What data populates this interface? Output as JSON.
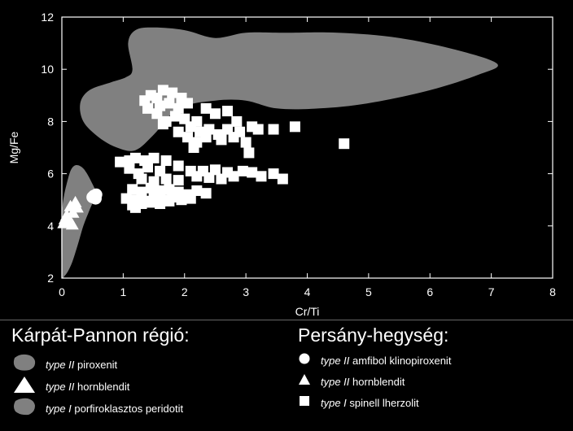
{
  "chart_data": {
    "type": "scatter",
    "xlabel": "Cr/Ti",
    "ylabel": "Mg/Fe",
    "xlim": [
      0,
      8
    ],
    "ylim": [
      2,
      12
    ],
    "xticks": [
      "0",
      "1",
      "2",
      "3",
      "4",
      "5",
      "6",
      "7",
      "8"
    ],
    "yticks": [
      "2",
      "4",
      "6",
      "8",
      "10",
      "12"
    ],
    "grid": false,
    "regions": [
      {
        "name": "type II piroxenit",
        "color": "#808080",
        "polygon": [
          [
            0.0,
            2.2
          ],
          [
            0.0,
            4.5
          ],
          [
            0.1,
            5.8
          ],
          [
            0.2,
            6.3
          ],
          [
            0.35,
            6.2
          ],
          [
            0.5,
            5.6
          ],
          [
            0.55,
            5.2
          ],
          [
            0.45,
            4.6
          ],
          [
            0.35,
            4.0
          ],
          [
            0.25,
            3.2
          ],
          [
            0.15,
            2.5
          ],
          [
            0.05,
            2.1
          ]
        ]
      },
      {
        "name": "type I porfiroklasztos peridotit",
        "color": "#808080",
        "polygon": [
          [
            0.35,
            8.0
          ],
          [
            0.3,
            8.7
          ],
          [
            0.45,
            9.2
          ],
          [
            0.8,
            9.5
          ],
          [
            1.05,
            9.7
          ],
          [
            1.15,
            10.0
          ],
          [
            1.08,
            11.0
          ],
          [
            1.2,
            11.5
          ],
          [
            1.5,
            11.6
          ],
          [
            2.0,
            11.5
          ],
          [
            2.5,
            11.2
          ],
          [
            3.0,
            11.4
          ],
          [
            3.6,
            11.4
          ],
          [
            4.5,
            11.4
          ],
          [
            5.5,
            11.2
          ],
          [
            6.5,
            10.7
          ],
          [
            7.1,
            10.2
          ],
          [
            6.8,
            9.8
          ],
          [
            6.0,
            9.2
          ],
          [
            5.0,
            8.7
          ],
          [
            4.2,
            8.5
          ],
          [
            3.5,
            8.5
          ],
          [
            3.0,
            8.8
          ],
          [
            2.5,
            8.8
          ],
          [
            1.9,
            8.5
          ],
          [
            1.5,
            7.5
          ],
          [
            1.2,
            6.9
          ],
          [
            0.9,
            7.0
          ],
          [
            0.6,
            7.4
          ]
        ]
      }
    ],
    "series": [
      {
        "name": "type II amfibol klinopiroxenit",
        "marker": "circle",
        "points": [
          [
            0.52,
            5.15
          ],
          [
            0.56,
            5.2
          ],
          [
            0.55,
            5.05
          ],
          [
            0.5,
            5.1
          ]
        ]
      },
      {
        "name": "type II hornblendit",
        "marker": "triangle",
        "points": [
          [
            0.03,
            4.1
          ],
          [
            0.1,
            4.15
          ],
          [
            0.17,
            4.05
          ],
          [
            0.08,
            4.4
          ],
          [
            0.18,
            4.5
          ],
          [
            0.14,
            4.75
          ],
          [
            0.25,
            4.7
          ],
          [
            0.22,
            4.9
          ],
          [
            0.05,
            4.25
          ]
        ]
      },
      {
        "name": "type I spinell lherzolit",
        "marker": "square",
        "points": [
          [
            1.35,
            8.8
          ],
          [
            1.45,
            9.0
          ],
          [
            1.55,
            8.9
          ],
          [
            1.65,
            9.2
          ],
          [
            1.8,
            9.1
          ],
          [
            1.95,
            8.9
          ],
          [
            2.05,
            8.7
          ],
          [
            1.4,
            8.5
          ],
          [
            1.6,
            8.6
          ],
          [
            1.75,
            8.7
          ],
          [
            1.9,
            8.5
          ],
          [
            1.55,
            8.3
          ],
          [
            1.7,
            8.0
          ],
          [
            1.85,
            8.2
          ],
          [
            2.0,
            8.1
          ],
          [
            2.2,
            8.0
          ],
          [
            2.35,
            8.5
          ],
          [
            2.5,
            8.3
          ],
          [
            2.7,
            8.4
          ],
          [
            2.85,
            8.0
          ],
          [
            1.65,
            7.9
          ],
          [
            2.1,
            7.8
          ],
          [
            2.25,
            7.6
          ],
          [
            2.4,
            7.7
          ],
          [
            2.55,
            7.5
          ],
          [
            2.7,
            7.7
          ],
          [
            2.9,
            7.6
          ],
          [
            3.1,
            7.8
          ],
          [
            3.2,
            7.7
          ],
          [
            3.45,
            7.7
          ],
          [
            3.8,
            7.8
          ],
          [
            1.9,
            7.6
          ],
          [
            2.05,
            7.4
          ],
          [
            2.2,
            7.2
          ],
          [
            2.35,
            7.4
          ],
          [
            2.6,
            7.3
          ],
          [
            2.8,
            7.4
          ],
          [
            3.0,
            7.2
          ],
          [
            2.15,
            7.0
          ],
          [
            4.6,
            7.15
          ],
          [
            3.05,
            6.8
          ],
          [
            0.95,
            6.45
          ],
          [
            1.1,
            6.5
          ],
          [
            1.2,
            6.6
          ],
          [
            1.35,
            6.5
          ],
          [
            1.5,
            6.6
          ],
          [
            1.7,
            6.5
          ],
          [
            1.1,
            6.2
          ],
          [
            1.25,
            6.0
          ],
          [
            1.4,
            6.25
          ],
          [
            1.6,
            6.1
          ],
          [
            1.9,
            6.3
          ],
          [
            2.1,
            6.1
          ],
          [
            2.3,
            6.1
          ],
          [
            2.5,
            6.15
          ],
          [
            2.7,
            6.05
          ],
          [
            2.95,
            6.1
          ],
          [
            3.1,
            6.05
          ],
          [
            3.25,
            5.9
          ],
          [
            3.45,
            6.0
          ],
          [
            3.6,
            5.8
          ],
          [
            2.8,
            5.9
          ],
          [
            2.6,
            5.8
          ],
          [
            2.4,
            5.85
          ],
          [
            2.2,
            5.9
          ],
          [
            1.3,
            5.8
          ],
          [
            1.5,
            5.7
          ],
          [
            1.7,
            5.8
          ],
          [
            1.9,
            5.75
          ],
          [
            1.15,
            5.4
          ],
          [
            1.3,
            5.3
          ],
          [
            1.45,
            5.45
          ],
          [
            1.6,
            5.35
          ],
          [
            1.75,
            5.4
          ],
          [
            1.9,
            5.3
          ],
          [
            2.05,
            5.2
          ],
          [
            2.2,
            5.35
          ],
          [
            2.35,
            5.25
          ],
          [
            1.05,
            5.05
          ],
          [
            1.2,
            5.0
          ],
          [
            1.35,
            4.95
          ],
          [
            1.5,
            5.1
          ],
          [
            1.65,
            5.0
          ],
          [
            1.8,
            5.1
          ],
          [
            1.95,
            5.0
          ],
          [
            2.1,
            5.05
          ],
          [
            1.15,
            4.8
          ],
          [
            1.3,
            4.85
          ],
          [
            1.45,
            4.9
          ],
          [
            1.6,
            4.85
          ],
          [
            1.75,
            4.95
          ],
          [
            1.2,
            4.7
          ]
        ]
      }
    ]
  },
  "legend": {
    "left_title": "Kárpát-Pannon régió:",
    "right_title": "Persány-hegység:",
    "left_items": [
      {
        "italic": "type II",
        "text": " piroxenit",
        "symbol": "blob"
      },
      {
        "italic": "type II",
        "text": " hornblendit",
        "symbol": "triangle"
      },
      {
        "italic": "type I",
        "text": " porfiroklasztos peridotit",
        "symbol": "blob"
      }
    ],
    "right_items": [
      {
        "italic": "type II",
        "text": " amfibol klinopiroxenit",
        "symbol": "circle"
      },
      {
        "italic": "type II",
        "text": " hornblendit",
        "symbol": "triangle"
      },
      {
        "italic": "type I",
        "text": " spinell lherzolit",
        "symbol": "square"
      }
    ]
  },
  "colors": {
    "background": "#000000",
    "field_fill": "#808080",
    "marker": "#ffffff",
    "frame": "#ffffff"
  }
}
